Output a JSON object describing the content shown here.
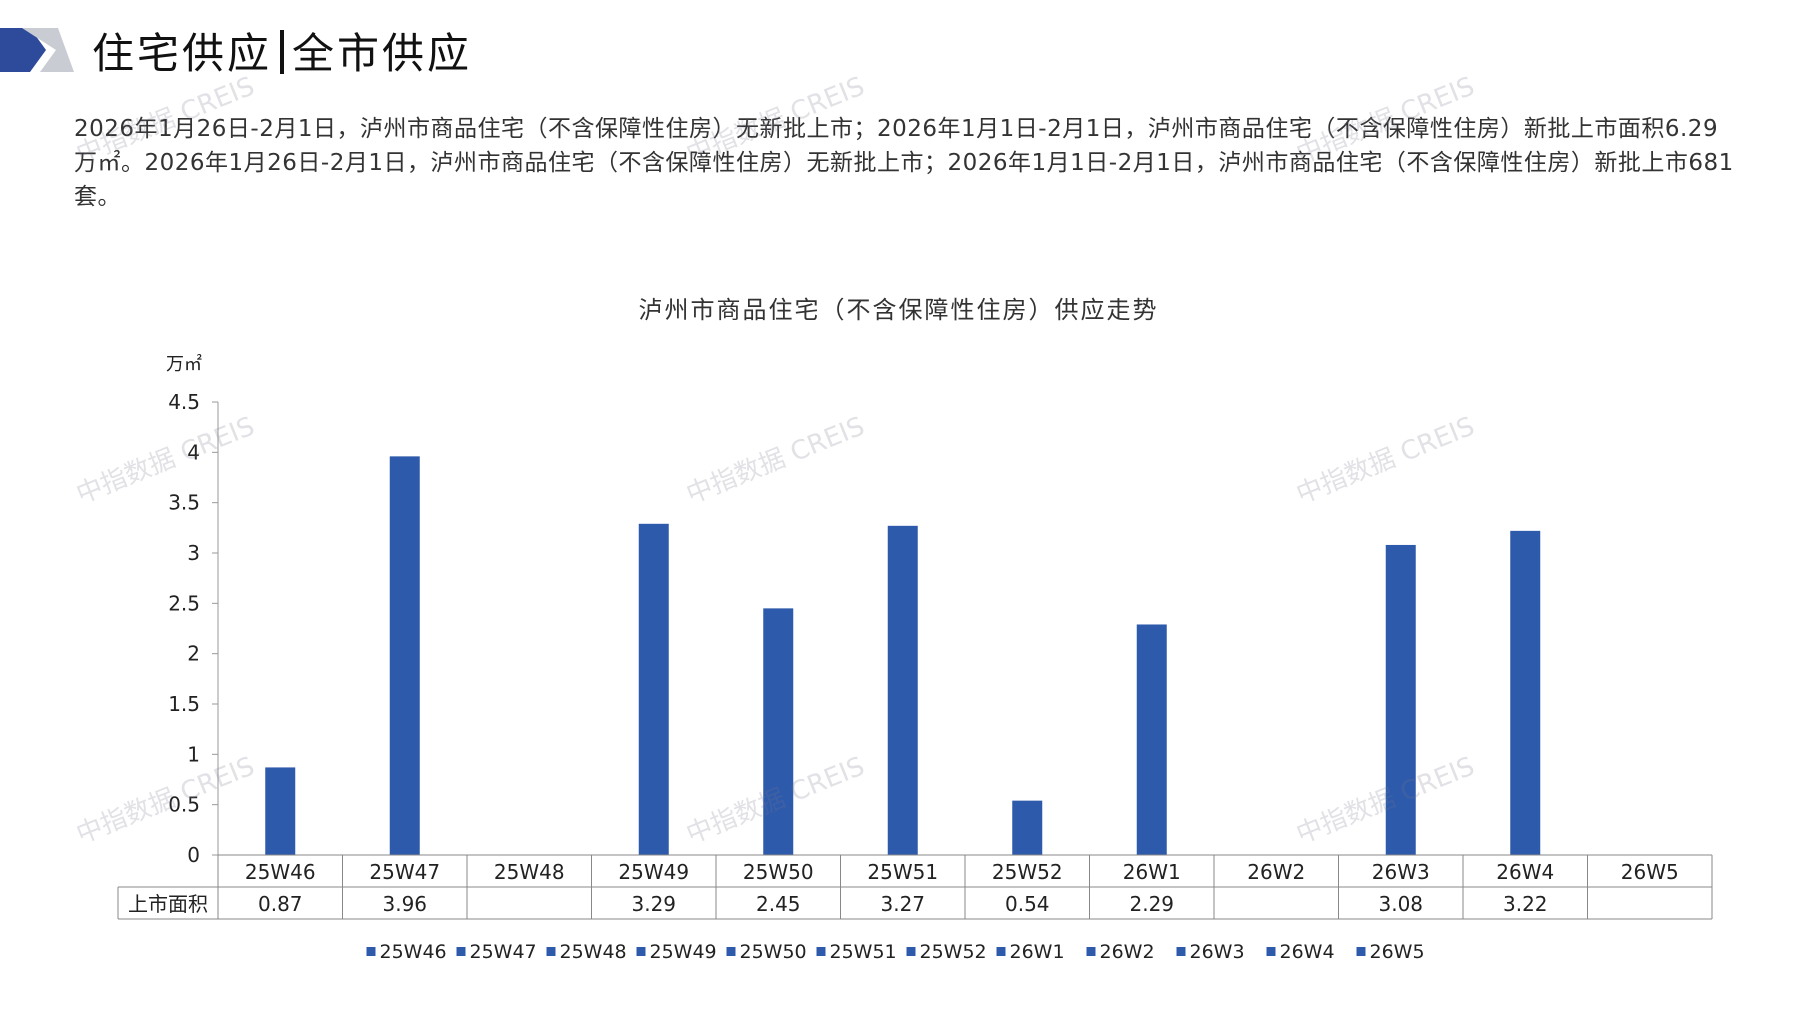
{
  "header": {
    "title_part1": "住宅供应",
    "title_part2": "全市供应"
  },
  "summary": "2026年1月26日-2月1日，泸州市商品住宅（不含保障性住房）无新批上市；2026年1月1日-2月1日，泸州市商品住宅（不含保障性住房）新批上市面积6.29万㎡。2026年1月26日-2月1日，泸州市商品住宅（不含保障性住房）无新批上市；2026年1月1日-2月1日，泸州市商品住宅（不含保障性住房）新批上市681套。",
  "watermark": "中指数据 CREIS",
  "colors": {
    "bar": "#2E5AAC",
    "accent_dark": "#2E4A9A",
    "accent_light": "#C9CCD3"
  },
  "chart_data": {
    "type": "bar",
    "title": "泸州市商品住宅（不含保障性住房）供应走势",
    "ylabel": "万㎡",
    "ylim": [
      0,
      4.5
    ],
    "yticks": [
      "0",
      "0.5",
      "1",
      "1.5",
      "2",
      "2.5",
      "3",
      "3.5",
      "4",
      "4.5"
    ],
    "categories": [
      "25W46",
      "25W47",
      "25W48",
      "25W49",
      "25W50",
      "25W51",
      "25W52",
      "26W1",
      "26W2",
      "26W3",
      "26W4",
      "26W5"
    ],
    "series": [
      {
        "name": "上市面积",
        "values": [
          0.87,
          3.96,
          null,
          3.29,
          2.45,
          3.27,
          0.54,
          2.29,
          null,
          3.08,
          3.22,
          null
        ]
      }
    ],
    "value_labels": [
      "0.87",
      "3.96",
      "",
      "3.29",
      "2.45",
      "3.27",
      "0.54",
      "2.29",
      "",
      "3.08",
      "3.22",
      ""
    ],
    "legend": [
      "25W46",
      "25W47",
      "25W48",
      "25W49",
      "25W50",
      "25W51",
      "25W52",
      "26W1",
      "26W2",
      "26W3",
      "26W4",
      "26W5"
    ],
    "legend_position": "bottom",
    "grid": false,
    "data_table": true
  }
}
